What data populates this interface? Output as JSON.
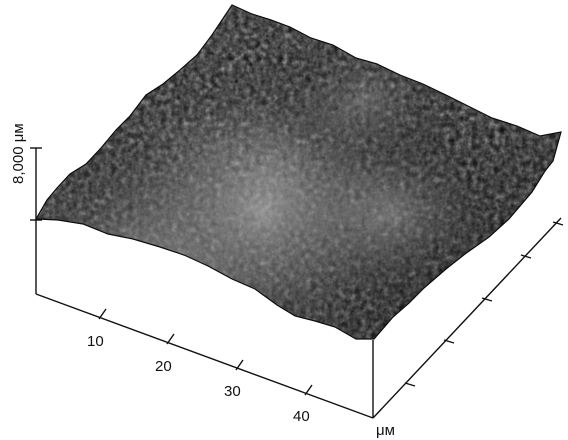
{
  "chart_data": {
    "type": "surface3d",
    "title": "",
    "z_axis": {
      "label": "8,000 μм",
      "max_value_label": "8,000",
      "unit": "μм"
    },
    "x_axis": {
      "tick_labels": [
        "10",
        "20",
        "30",
        "40"
      ],
      "unit": "μм"
    },
    "y_axis": {
      "tick_labels": [],
      "unit": ""
    },
    "grid": false,
    "legend": "none",
    "surface_palette": {
      "dark": "#090909",
      "mid": "#5f5f5f",
      "light": "#d9d9d9"
    }
  }
}
